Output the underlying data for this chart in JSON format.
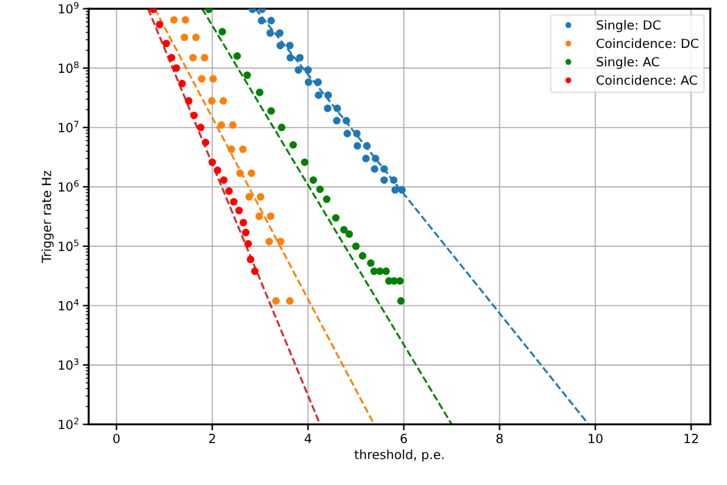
{
  "chart_data": {
    "type": "scatter",
    "xlabel": "threshold, p.e.",
    "ylabel": "Trigger rate Hz",
    "log": "y",
    "grid": true,
    "legend": "top right",
    "marker": "circle",
    "xlim": [
      -0.58,
      12.4
    ],
    "xticks": [
      0,
      2,
      4,
      6,
      8,
      10,
      12
    ],
    "ylim": [
      100,
      1000000000
    ],
    "yticks": [
      {
        "value": 100,
        "label": "10$^{2}$"
      },
      {
        "value": 1000,
        "label": "10$^{3}$"
      },
      {
        "value": 10000,
        "label": "10$^{4}$"
      },
      {
        "value": 100000,
        "label": "10$^{5}$"
      },
      {
        "value": 1000000,
        "label": "10$^{6}$"
      },
      {
        "value": 10000000,
        "label": "10$^{7}$"
      },
      {
        "value": 100000000,
        "label": "10$^{8}$"
      },
      {
        "value": 1000000000,
        "label": "10$^{9}$"
      }
    ],
    "series": [
      {
        "name": "Single: DC",
        "color": "#1f77b4",
        "x": [
          2.84,
          3.04,
          3.03,
          3.23,
          3.21,
          3.41,
          3.42,
          3.62,
          3.63,
          3.83,
          3.8,
          4.0,
          4.01,
          4.21,
          4.22,
          4.42,
          4.41,
          4.61,
          4.6,
          4.8,
          4.82,
          5.02,
          5.03,
          5.23,
          5.21,
          5.41,
          5.39,
          5.59,
          5.59,
          5.79,
          5.82,
          5.96
        ],
        "values": [
          980000000.0,
          980000000.0,
          630000000.0,
          630000000.0,
          390000000.0,
          390000000.0,
          240000000.0,
          240000000.0,
          150000000.0,
          150000000.0,
          93000000.0,
          93000000.0,
          58000000.0,
          58000000.0,
          35000000.0,
          35000000.0,
          21000000.0,
          21000000.0,
          13000000.0,
          13000000.0,
          7900000.0,
          7900000.0,
          4900000.0,
          4900000.0,
          3000000.0,
          3000000.0,
          2000000.0,
          2000000.0,
          1300000.0,
          1300000.0,
          890000.0,
          890000.0
        ]
      },
      {
        "name": "Coincidence: DC",
        "color": "#ff7f0e",
        "x": [
          1.2,
          1.44,
          1.42,
          1.66,
          1.6,
          1.84,
          1.78,
          2.02,
          1.99,
          2.23,
          2.19,
          2.43,
          2.4,
          2.64,
          2.58,
          2.82,
          2.77,
          3.01,
          2.98,
          3.22,
          3.19,
          3.43,
          3.33,
          3.62
        ],
        "values": [
          650000000.0,
          650000000.0,
          330000000.0,
          330000000.0,
          150000000.0,
          150000000.0,
          66000000.0,
          66000000.0,
          28000000.0,
          28000000.0,
          11000000.0,
          11000000.0,
          4300000.0,
          4300000.0,
          1700000.0,
          1700000.0,
          680000.0,
          680000.0,
          320000.0,
          320000.0,
          120000.0,
          120000.0,
          12000.0,
          12000.0
        ]
      },
      {
        "name": "Single: AC",
        "color": "#008000",
        "x": [
          1.93,
          2.21,
          2.52,
          2.73,
          2.99,
          3.23,
          3.45,
          3.69,
          3.93,
          4.11,
          4.25,
          4.39,
          4.58,
          4.75,
          4.86,
          5.0,
          5.14,
          5.31,
          5.38,
          5.5,
          5.63,
          5.69,
          5.8,
          5.92,
          5.94
        ],
        "values": [
          980000000.0,
          410000000.0,
          160000000.0,
          76000000.0,
          39000000.0,
          19000000.0,
          10000000.0,
          5100000.0,
          2600000.0,
          1300000.0,
          910000.0,
          620000.0,
          300000.0,
          190000.0,
          160000.0,
          100000.0,
          69000.0,
          52000.0,
          38000.0,
          38000.0,
          38000.0,
          26000.0,
          26000.0,
          26000.0,
          12000.0
        ]
      },
      {
        "name": "Coincidence: AC",
        "color": "#ff0000",
        "x": [
          0.77,
          0.9,
          1.04,
          1.15,
          1.25,
          1.37,
          1.51,
          1.62,
          1.76,
          1.86,
          2.0,
          2.11,
          2.24,
          2.35,
          2.45,
          2.56,
          2.65,
          2.7,
          2.75,
          2.8,
          2.89
        ],
        "values": [
          980000000.0,
          540000000.0,
          260000000.0,
          150000000.0,
          100000000.0,
          55000000.0,
          28000000.0,
          16000000.0,
          10000000.0,
          5600000.0,
          2600000.0,
          1900000.0,
          1300000.0,
          850000.0,
          560000.0,
          400000.0,
          250000.0,
          170000.0,
          110000.0,
          60000.0,
          38000.0
        ]
      },
      {
        "type": "line",
        "line_style": "dashed",
        "marker": "none",
        "color": "#1f77b4",
        "x": [
          2.9,
          9.86
        ],
        "values": [
          1000000000,
          100
        ]
      },
      {
        "type": "line",
        "line_style": "dashed",
        "marker": "none",
        "color": "#ff7f0e",
        "x": [
          0.8,
          5.38
        ],
        "values": [
          1000000000,
          100
        ]
      },
      {
        "type": "line",
        "line_style": "dashed",
        "marker": "none",
        "color": "#008000",
        "x": [
          1.79,
          7.0
        ],
        "values": [
          1000000000,
          100
        ]
      },
      {
        "type": "line",
        "line_style": "dashed",
        "marker": "none",
        "color": "#d62728",
        "x": [
          0.66,
          4.25
        ],
        "values": [
          1000000000,
          100
        ]
      }
    ]
  }
}
